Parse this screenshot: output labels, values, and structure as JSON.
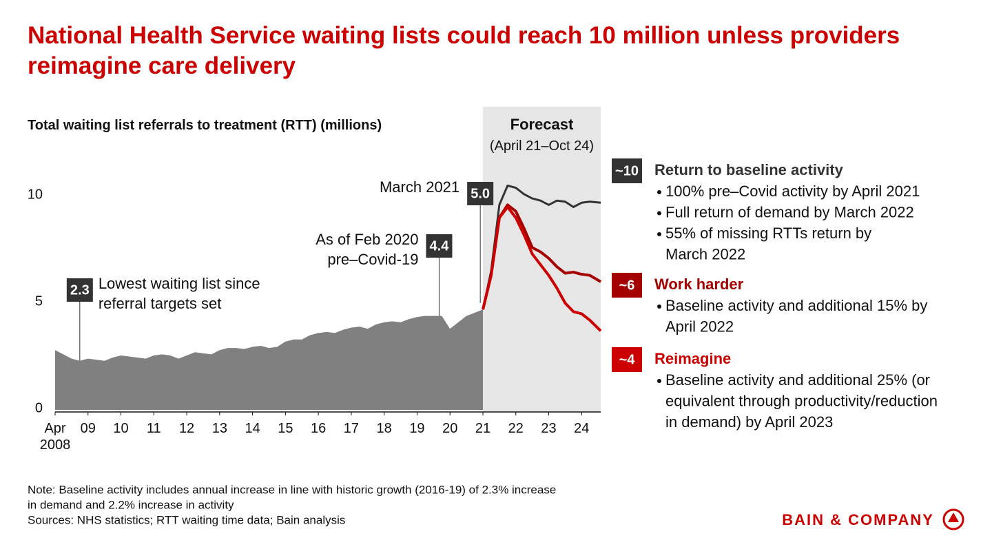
{
  "chart_data": {
    "type": "line",
    "title": "National Health Service waiting lists could reach 10 million unless providers reimagine care delivery",
    "y_label": "Total waiting list referrals to treatment (RTT) (millions)",
    "xlim": [
      2008.25,
      2024.83
    ],
    "ylim": [
      0,
      10
    ],
    "yticks": [
      0,
      5,
      10
    ],
    "xticks": [
      {
        "value": 2008.25,
        "label": "Apr 2008"
      },
      {
        "value": 2009.25,
        "label": "09"
      },
      {
        "value": 2010.25,
        "label": "10"
      },
      {
        "value": 2011.25,
        "label": "11"
      },
      {
        "value": 2012.25,
        "label": "12"
      },
      {
        "value": 2013.25,
        "label": "13"
      },
      {
        "value": 2014.25,
        "label": "14"
      },
      {
        "value": 2015.25,
        "label": "15"
      },
      {
        "value": 2016.25,
        "label": "16"
      },
      {
        "value": 2017.25,
        "label": "17"
      },
      {
        "value": 2018.25,
        "label": "18"
      },
      {
        "value": 2019.25,
        "label": "19"
      },
      {
        "value": 2020.25,
        "label": "20"
      },
      {
        "value": 2021.25,
        "label": "21"
      },
      {
        "value": 2022.25,
        "label": "22"
      },
      {
        "value": 2023.25,
        "label": "23"
      },
      {
        "value": 2024.25,
        "label": "24"
      }
    ],
    "history": {
      "color": "#808080",
      "x": [
        2008.25,
        2008.5,
        2008.75,
        2009.0,
        2009.25,
        2009.5,
        2009.75,
        2010.0,
        2010.25,
        2010.5,
        2010.75,
        2011.0,
        2011.25,
        2011.5,
        2011.75,
        2012.0,
        2012.25,
        2012.5,
        2012.75,
        2013.0,
        2013.25,
        2013.5,
        2013.75,
        2014.0,
        2014.25,
        2014.5,
        2014.75,
        2015.0,
        2015.25,
        2015.5,
        2015.75,
        2016.0,
        2016.25,
        2016.5,
        2016.75,
        2017.0,
        2017.25,
        2017.5,
        2017.75,
        2018.0,
        2018.25,
        2018.5,
        2018.75,
        2019.0,
        2019.25,
        2019.5,
        2019.75,
        2020.0,
        2020.25,
        2020.5,
        2020.75,
        2021.0,
        2021.25
      ],
      "values": [
        2.8,
        2.6,
        2.4,
        2.3,
        2.4,
        2.35,
        2.3,
        2.45,
        2.55,
        2.5,
        2.45,
        2.4,
        2.55,
        2.6,
        2.55,
        2.4,
        2.55,
        2.7,
        2.65,
        2.6,
        2.8,
        2.9,
        2.9,
        2.85,
        2.95,
        3.0,
        2.9,
        2.95,
        3.2,
        3.3,
        3.3,
        3.5,
        3.6,
        3.65,
        3.6,
        3.75,
        3.85,
        3.9,
        3.8,
        4.0,
        4.1,
        4.15,
        4.1,
        4.25,
        4.35,
        4.4,
        4.4,
        4.4,
        3.8,
        4.1,
        4.4,
        4.55,
        4.7
      ]
    },
    "forecast": {
      "start": 2021.25,
      "title": "Forecast",
      "subtitle": "(April 21–Oct 24)"
    },
    "series": [
      {
        "name": "Return to baseline activity",
        "color": "#333333",
        "badge": "~10",
        "bullets": [
          [
            "100% pre–Covid activity by April 2021"
          ],
          [
            "Full return of demand by March 2022"
          ],
          [
            "55% of missing RTTs return by",
            "March 2022"
          ]
        ],
        "x": [
          2021.25,
          2021.5,
          2021.75,
          2022.0,
          2022.25,
          2022.5,
          2022.75,
          2023.0,
          2023.25,
          2023.5,
          2023.75,
          2024.0,
          2024.25,
          2024.5,
          2024.83
        ],
        "values": [
          4.7,
          6.5,
          9.6,
          10.5,
          10.4,
          10.1,
          9.9,
          9.8,
          9.6,
          9.8,
          9.75,
          9.5,
          9.7,
          9.75,
          9.7
        ]
      },
      {
        "name": "Work harder",
        "color": "#a50000",
        "badge": "~6",
        "bullets": [
          [
            "Baseline activity and additional 15% by",
            "April 2022"
          ]
        ],
        "x": [
          2021.25,
          2021.5,
          2021.75,
          2022.0,
          2022.25,
          2022.5,
          2022.75,
          2023.0,
          2023.25,
          2023.5,
          2023.75,
          2024.0,
          2024.25,
          2024.5,
          2024.83
        ],
        "values": [
          4.7,
          6.3,
          9.0,
          9.6,
          9.3,
          8.5,
          7.6,
          7.4,
          7.1,
          6.7,
          6.4,
          6.45,
          6.35,
          6.3,
          6.0
        ]
      },
      {
        "name": "Reimagine",
        "color": "#cc0000",
        "badge": "~4",
        "bullets": [
          [
            "Baseline activity and additional 25% (or",
            "equivalent through productivity/reduction",
            "in demand) by April 2023"
          ]
        ],
        "x": [
          2021.25,
          2021.5,
          2021.75,
          2022.0,
          2022.25,
          2022.5,
          2022.75,
          2023.0,
          2023.25,
          2023.5,
          2023.75,
          2024.0,
          2024.25,
          2024.5,
          2024.83
        ],
        "values": [
          4.7,
          6.3,
          9.0,
          9.5,
          9.0,
          8.2,
          7.3,
          6.8,
          6.3,
          5.7,
          5.0,
          4.6,
          4.5,
          4.2,
          3.7
        ]
      }
    ],
    "annotations": [
      {
        "x": 2009.0,
        "value": 2.3,
        "text": [
          "Lowest waiting list since",
          "referral targets set"
        ]
      },
      {
        "x": 2019.92,
        "value": 4.4,
        "text": [
          "As of Feb 2020",
          "pre–Covid-19"
        ]
      },
      {
        "x": 2021.17,
        "value": 5,
        "value_label": "5.0",
        "text": [
          "March 2021"
        ]
      }
    ]
  },
  "footer": {
    "note": [
      "Note: Baseline activity includes annual increase in line with historic growth (2016-19) of 2.3% increase",
      "in demand and 2.2% increase in activity"
    ],
    "sources": "Sources: NHS statistics; RTT waiting time data; Bain analysis",
    "brand": "BAIN & COMPANY"
  }
}
